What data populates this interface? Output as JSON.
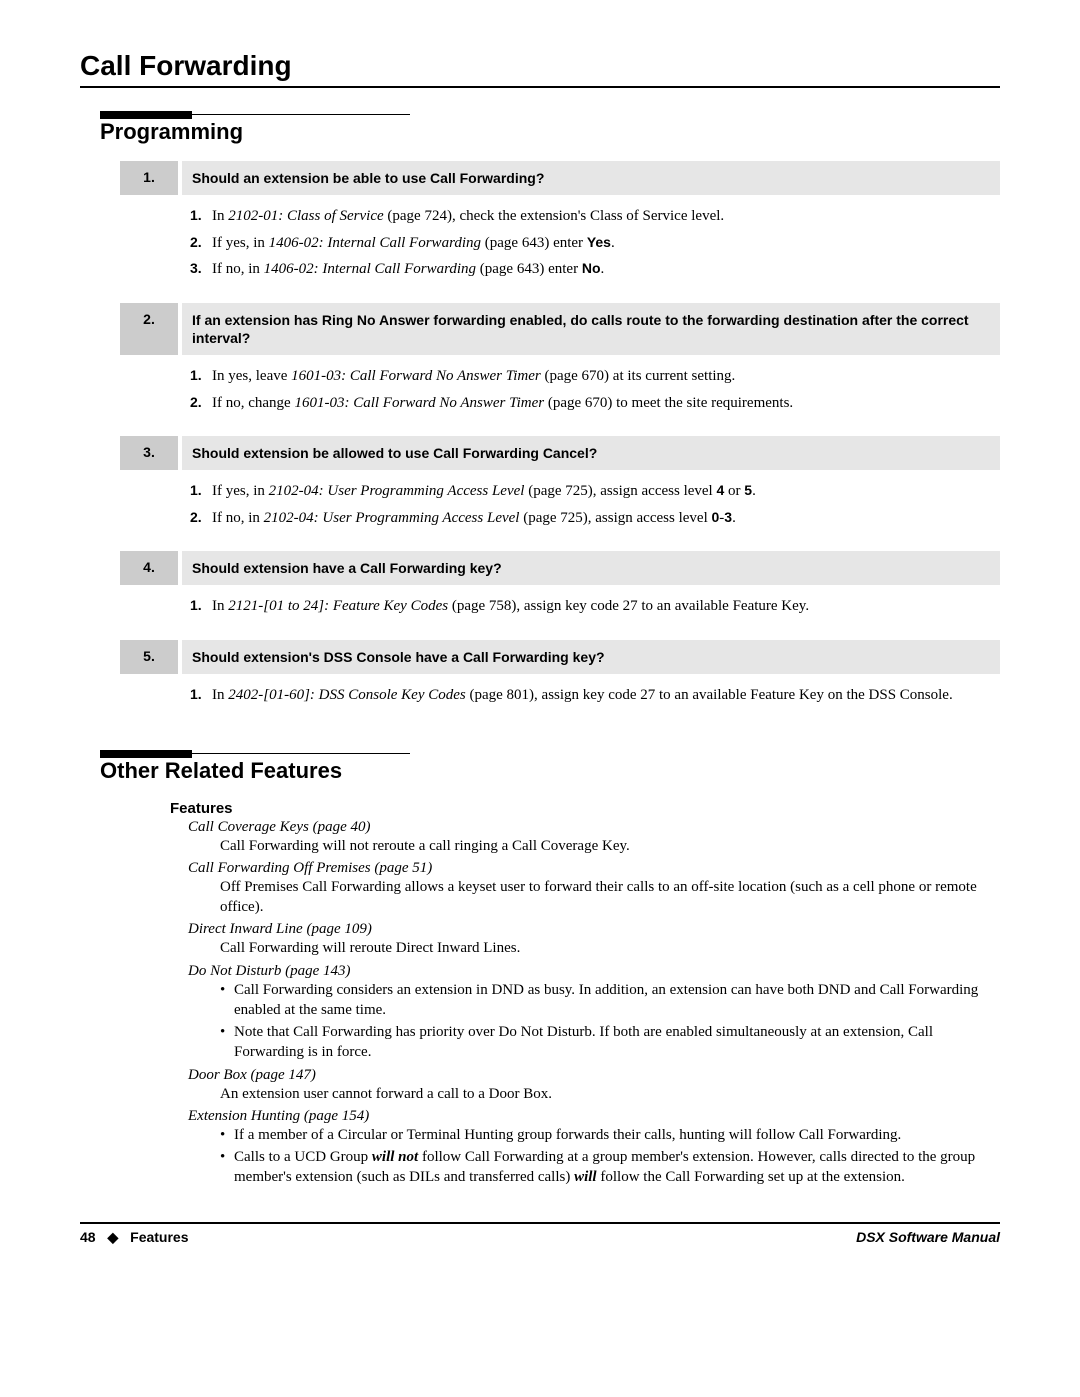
{
  "page": {
    "title": "Call Forwarding",
    "number": "48",
    "footer_diamond": "◆",
    "footer_section": "Features",
    "footer_manual": "DSX Software Manual"
  },
  "sections": {
    "programming": {
      "heading": "Programming"
    },
    "other": {
      "heading": "Other Related Features",
      "features_label": "Features"
    }
  },
  "questions": [
    {
      "num": "1.",
      "q": "Should an extension be able to use Call Forwarding?",
      "steps": [
        {
          "n": "1.",
          "pre": "In ",
          "em": "2102-01: Class of Service",
          "post_em": " (page 724), check the extension's Class of Service level."
        },
        {
          "n": "2.",
          "pre": "If yes, in ",
          "em": "1406-02: Internal Call Forwarding",
          "post_em": " (page 643) enter ",
          "bold": "Yes",
          "post_bold": "."
        },
        {
          "n": "3.",
          "pre": "If no, in ",
          "em": "1406-02: Internal Call Forwarding",
          "post_em": " (page 643) enter ",
          "bold": "No",
          "post_bold": "."
        }
      ]
    },
    {
      "num": "2.",
      "q": "If an extension has Ring No Answer forwarding enabled, do calls route to the forwarding destination after the correct interval?",
      "steps": [
        {
          "n": "1.",
          "pre": "In yes, leave ",
          "em": "1601-03: Call Forward No Answer Timer",
          "post_em": " (page 670) at its current setting."
        },
        {
          "n": "2.",
          "pre": "If no, change ",
          "em": "1601-03: Call Forward No Answer Timer",
          "post_em": " (page 670) to meet the site requirements."
        }
      ]
    },
    {
      "num": "3.",
      "q": "Should extension be allowed to use Call Forwarding Cancel?",
      "steps": [
        {
          "n": "1.",
          "pre": "If yes, in ",
          "em": "2102-04: User Programming Access Level",
          "post_em": " (page 725), assign access level ",
          "bold": "4",
          "post_bold": " or ",
          "bold2": "5",
          "post_bold2": "."
        },
        {
          "n": "2.",
          "pre": "If no, in ",
          "em": "2102-04: User Programming Access Level",
          "post_em": " (page 725), assign access level ",
          "bold": "0",
          "post_bold": "-",
          "bold2": "3",
          "post_bold2": "."
        }
      ]
    },
    {
      "num": "4.",
      "q": "Should extension have a Call Forwarding key?",
      "steps": [
        {
          "n": "1.",
          "pre": "In ",
          "em": "2121-[01 to 24]: Feature Key Codes",
          "post_em": " (page 758), assign key code 27 to an available Feature Key."
        }
      ]
    },
    {
      "num": "5.",
      "q": "Should extension's DSS Console have a Call Forwarding key?",
      "steps": [
        {
          "n": "1.",
          "pre": "In ",
          "em": "2402-[01-60]: DSS Console Key Codes",
          "post_em": " (page 801), assign key code 27 to an available Feature Key on the DSS Console."
        }
      ]
    }
  ],
  "features": [
    {
      "title_em": "Call Coverage Keys",
      "title_post": " (page 40)",
      "desc": "Call Forwarding will not reroute a call ringing a Call Coverage Key."
    },
    {
      "title_em": "Call Forwarding Off Premises",
      "title_post": " (page 51)",
      "desc": "Off Premises Call Forwarding allows a keyset user to forward their calls to an off-site location (such as a cell phone or remote office)."
    },
    {
      "title_em": "Direct Inward Line",
      "title_post": " (page 109)",
      "desc": "Call Forwarding will reroute Direct Inward Lines."
    },
    {
      "title_em": "Do Not Disturb",
      "title_post": " (page 143)",
      "bullets": [
        {
          "text": "Call Forwarding considers an extension in DND as busy. In addition, an extension can have both DND and Call Forwarding enabled at the same time."
        },
        {
          "text": "Note that Call Forwarding has priority over Do Not Disturb. If both are enabled simultaneously at an extension, Call Forwarding is in force."
        }
      ]
    },
    {
      "title_em": "Door Box",
      "title_post": " (page 147)",
      "desc": "An extension user cannot forward a call to a Door Box."
    },
    {
      "title_em": "Extension Hunting",
      "title_post": " (page 154)",
      "bullets": [
        {
          "text": "If a member of a Circular or Terminal Hunting group forwards their calls, hunting will follow Call Forwarding."
        },
        {
          "text_pre": "Calls to a UCD Group ",
          "bi1": "will not",
          "text_mid": " follow Call Forwarding at a group member's extension. However, calls directed to the group member's extension (such as DILs and transferred calls) ",
          "bi2": "will",
          "text_post": " follow the Call Forwarding set up at the extension."
        }
      ]
    }
  ]
}
